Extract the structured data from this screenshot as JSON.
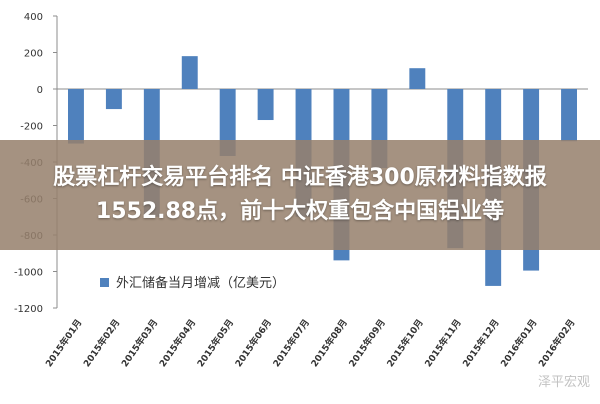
{
  "chart_data": {
    "type": "bar",
    "categories": [
      "2015年01月",
      "2015年02月",
      "2015年03月",
      "2015年04月",
      "2015年05月",
      "2015年06月",
      "2015年07月",
      "2015年08月",
      "2015年09月",
      "2015年10月",
      "2015年11月",
      "2015年12月",
      "2016年01月",
      "2016年02月"
    ],
    "series": [
      {
        "name": "外汇储备当月增减（亿美元）",
        "values": [
          -299,
          -110,
          -700,
          180,
          -367,
          -170,
          -700,
          -939,
          -433,
          114,
          -872,
          -1079,
          -995,
          -286
        ],
        "color": "#4f81bd"
      }
    ],
    "ylim": [
      -1200,
      400
    ],
    "yticks": [
      -1200,
      -1000,
      -800,
      -600,
      -400,
      -200,
      0,
      200,
      400
    ],
    "legend_position": "bottom-left",
    "grid": false
  },
  "headline": {
    "line1": "股票杠杆交易平台排名 中证香港300原材料指数报",
    "line2": "1552.88点，前十大权重包含中国铝业等"
  },
  "watermark": "泽平宏观"
}
